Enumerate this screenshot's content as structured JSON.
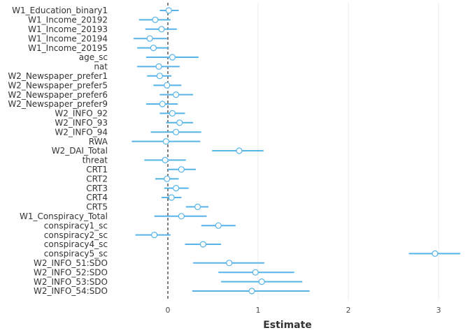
{
  "chart_data": {
    "type": "coefficient-plot",
    "title": "",
    "xlabel": "Estimate",
    "ylabel": "",
    "xlim": [
      -0.62,
      3.27
    ],
    "xticks": [
      0,
      1,
      2,
      3
    ],
    "xtick_labels": [
      "0",
      "1",
      "2",
      "3"
    ],
    "reference_line": 0,
    "grid": "vertical-major",
    "colors": {
      "interval": "#56b4e9",
      "point_fill": "#ffffff",
      "reference": "#000000",
      "grid": "#ebebeb"
    },
    "terms": [
      {
        "label": "W1_Education_binary1",
        "estimate": 0.01,
        "low": -0.09,
        "high": 0.12
      },
      {
        "label": "W1_Income_20192",
        "estimate": -0.14,
        "low": -0.32,
        "high": 0.03
      },
      {
        "label": "W1_Income_20193",
        "estimate": -0.07,
        "low": -0.25,
        "high": 0.1
      },
      {
        "label": "W1_Income_20194",
        "estimate": -0.2,
        "low": -0.38,
        "high": -0.01
      },
      {
        "label": "W1_Income_20195",
        "estimate": -0.16,
        "low": -0.34,
        "high": 0.01
      },
      {
        "label": "age_sc",
        "estimate": 0.05,
        "low": -0.24,
        "high": 0.34
      },
      {
        "label": "nat",
        "estimate": -0.1,
        "low": -0.34,
        "high": 0.13
      },
      {
        "label": "W2_Newspaper_prefer1",
        "estimate": -0.09,
        "low": -0.23,
        "high": 0.04
      },
      {
        "label": "W2_Newspaper_prefer5",
        "estimate": -0.01,
        "low": -0.16,
        "high": 0.15
      },
      {
        "label": "W2_Newspaper_prefer6",
        "estimate": 0.09,
        "low": -0.09,
        "high": 0.28
      },
      {
        "label": "W2_Newspaper_prefer9",
        "estimate": -0.06,
        "low": -0.24,
        "high": 0.11
      },
      {
        "label": "W2_INFO_92",
        "estimate": 0.05,
        "low": -0.09,
        "high": 0.19
      },
      {
        "label": "W2_INFO_93",
        "estimate": 0.13,
        "low": -0.02,
        "high": 0.28
      },
      {
        "label": "W2_INFO_94",
        "estimate": 0.09,
        "low": -0.19,
        "high": 0.37
      },
      {
        "label": "RWA",
        "estimate": -0.02,
        "low": -0.4,
        "high": 0.36
      },
      {
        "label": "W2_DAI_Total",
        "estimate": 0.79,
        "low": 0.49,
        "high": 1.06
      },
      {
        "label": "threat",
        "estimate": -0.03,
        "low": -0.26,
        "high": 0.2
      },
      {
        "label": "CRT1",
        "estimate": 0.15,
        "low": 0.0,
        "high": 0.31
      },
      {
        "label": "CRT2",
        "estimate": -0.01,
        "low": -0.14,
        "high": 0.12
      },
      {
        "label": "CRT3",
        "estimate": 0.09,
        "low": -0.04,
        "high": 0.23
      },
      {
        "label": "CRT4",
        "estimate": 0.04,
        "low": -0.07,
        "high": 0.15
      },
      {
        "label": "CRT5",
        "estimate": 0.33,
        "low": 0.2,
        "high": 0.45
      },
      {
        "label": "W1_Conspiracy_Total",
        "estimate": 0.15,
        "low": -0.15,
        "high": 0.43
      },
      {
        "label": "conspiracy1_sc",
        "estimate": 0.56,
        "low": 0.37,
        "high": 0.75
      },
      {
        "label": "conspiracy2_sc",
        "estimate": -0.15,
        "low": -0.36,
        "high": 0.03
      },
      {
        "label": "conspiracy4_sc",
        "estimate": 0.39,
        "low": 0.19,
        "high": 0.59
      },
      {
        "label": "conspiracy5_sc",
        "estimate": 2.96,
        "low": 2.67,
        "high": 3.24
      },
      {
        "label": "W2_INFO_51:SDO",
        "estimate": 0.68,
        "low": 0.28,
        "high": 1.07
      },
      {
        "label": "W2_INFO_52:SDO",
        "estimate": 0.97,
        "low": 0.56,
        "high": 1.4
      },
      {
        "label": "W2_INFO_53:SDO",
        "estimate": 1.04,
        "low": 0.59,
        "high": 1.49
      },
      {
        "label": "W2_INFO_54:SDO",
        "estimate": 0.93,
        "low": 0.27,
        "high": 1.57
      }
    ]
  }
}
